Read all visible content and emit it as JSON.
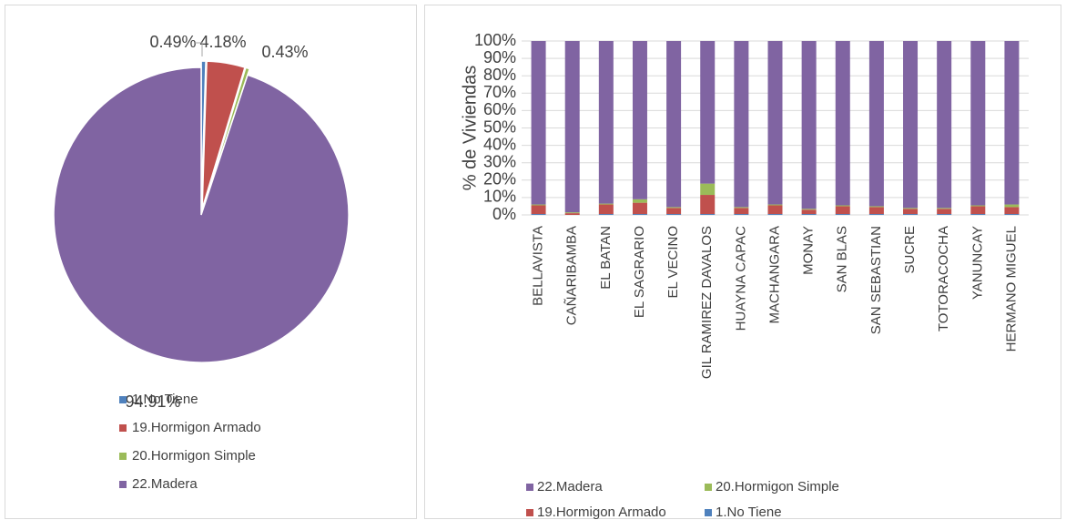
{
  "chart_data": [
    {
      "type": "pie",
      "categories": [
        "1.No Tiene",
        "19.Hormigon Armado",
        "20.Hormigon Simple",
        "22.Madera"
      ],
      "values": [
        0.49,
        4.18,
        0.43,
        94.91
      ],
      "value_labels": [
        "0.49%",
        "4.18%",
        "0.43%",
        "94.91%"
      ],
      "colors": [
        "#4f81bd",
        "#c0504d",
        "#9bbb59",
        "#8064a2"
      ],
      "legend": "bottom"
    },
    {
      "type": "bar",
      "stacked": true,
      "ylabel": "% de Viviendas",
      "categories": [
        "BELLAVISTA",
        "CAÑARIBAMBA",
        "EL BATAN",
        "EL SAGRARIO",
        "EL VECINO",
        "GIL RAMIREZ DAVALOS",
        "HUAYNA CAPAC",
        "MACHANGARA",
        "MONAY",
        "SAN BLAS",
        "SAN SEBASTIAN",
        "SUCRE",
        "TOTORACOCHA",
        "YANUNCAY",
        "HERMANO MIGUEL"
      ],
      "series": [
        {
          "name": "1.No Tiene",
          "color": "#4f81bd",
          "values": [
            0.5,
            0,
            0.5,
            0.5,
            0.5,
            0.5,
            0.5,
            0.5,
            0.5,
            0.5,
            0.5,
            0.5,
            0.5,
            0.5,
            0.5
          ]
        },
        {
          "name": "19.Hormigon Armado",
          "color": "#c0504d",
          "values": [
            5,
            1,
            5.5,
            6.5,
            3.5,
            11,
            3.5,
            5,
            2.5,
            4.5,
            4,
            3,
            3,
            4.5,
            4
          ]
        },
        {
          "name": "20.Hormigon Simple",
          "color": "#9bbb59",
          "values": [
            0.5,
            0.5,
            0.5,
            2,
            0.5,
            6.5,
            0.5,
            0.5,
            0.5,
            0.5,
            0.5,
            0.5,
            0.5,
            0.5,
            1.5
          ]
        },
        {
          "name": "22.Madera",
          "color": "#8064a2",
          "values": [
            94,
            98.5,
            93.5,
            91,
            95.5,
            82,
            95.5,
            94,
            96.5,
            94.5,
            95,
            96,
            96,
            94.5,
            94
          ]
        }
      ],
      "ylim": [
        0,
        100
      ],
      "yticks": [
        {
          "value": 0,
          "label": "0%"
        },
        {
          "value": 10,
          "label": "10%"
        },
        {
          "value": 20,
          "label": "20%"
        },
        {
          "value": 30,
          "label": "30%"
        },
        {
          "value": 40,
          "label": "40%"
        },
        {
          "value": 50,
          "label": "50%"
        },
        {
          "value": 60,
          "label": "60%"
        },
        {
          "value": 70,
          "label": "70%"
        },
        {
          "value": 80,
          "label": "80%"
        },
        {
          "value": 90,
          "label": "90%"
        },
        {
          "value": 100,
          "label": "100%"
        }
      ],
      "grid": true,
      "legend": "bottom"
    }
  ]
}
